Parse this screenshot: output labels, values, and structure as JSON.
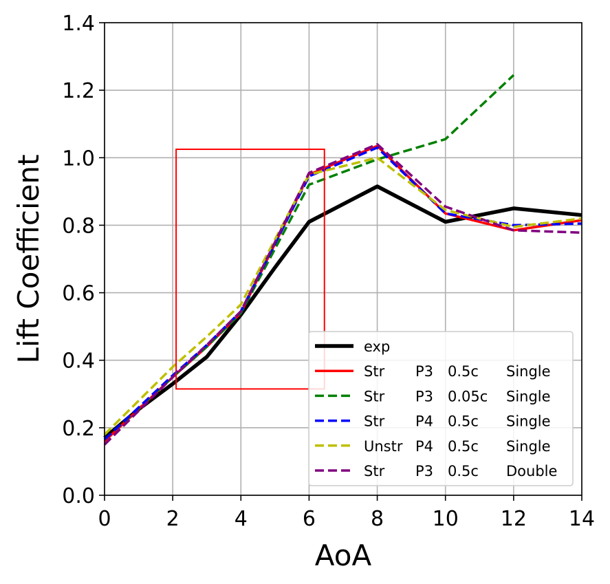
{
  "chart_data": {
    "type": "line",
    "xlabel": "AoA",
    "ylabel": "Lift Coefficient",
    "xlim": [
      0,
      14
    ],
    "ylim": [
      0,
      1.4
    ],
    "xticks": [
      "0",
      "2",
      "4",
      "6",
      "8",
      "10",
      "12",
      "14"
    ],
    "yticks": [
      "0.0",
      "0.2",
      "0.4",
      "0.6",
      "0.8",
      "1.0",
      "1.2",
      "1.4"
    ],
    "grid": true,
    "legend_position": "lower-right",
    "series": [
      {
        "name": "exp",
        "legend_cols": [
          "exp"
        ],
        "color": "#000000",
        "style": "solid",
        "points": [
          [
            0,
            0.17
          ],
          [
            1,
            0.255
          ],
          [
            2,
            0.33
          ],
          [
            3,
            0.41
          ],
          [
            4,
            0.535
          ],
          [
            5,
            0.675
          ],
          [
            6,
            0.81
          ],
          [
            8,
            0.915
          ],
          [
            10,
            0.81
          ],
          [
            11,
            0.83
          ],
          [
            12,
            0.85
          ],
          [
            14,
            0.83
          ]
        ]
      },
      {
        "name": "Str      P3  0.5c    Single",
        "legend_cols": [
          "Str",
          "P3",
          "0.5c",
          "Single"
        ],
        "color": "#ff0000",
        "style": "solid",
        "points": [
          [
            0,
            0.16
          ],
          [
            2,
            0.35
          ],
          [
            3,
            0.44
          ],
          [
            4,
            0.54
          ],
          [
            6,
            0.95
          ],
          [
            8,
            1.035
          ],
          [
            10,
            0.835
          ],
          [
            12,
            0.785
          ],
          [
            14,
            0.815
          ]
        ]
      },
      {
        "name": "Str      P3  0.05c  Single",
        "legend_cols": [
          "Str",
          "P3",
          "0.05c",
          "Single"
        ],
        "color": "#008000",
        "style": "dashed",
        "points": [
          [
            0,
            0.165
          ],
          [
            2,
            0.35
          ],
          [
            3,
            0.44
          ],
          [
            4,
            0.54
          ],
          [
            6,
            0.92
          ],
          [
            8,
            0.995
          ],
          [
            10,
            1.055
          ],
          [
            12,
            1.245
          ]
        ]
      },
      {
        "name": "Str      P4  0.5c    Single",
        "legend_cols": [
          "Str",
          "P4",
          "0.5c",
          "Single"
        ],
        "color": "#0000ff",
        "style": "dashed",
        "points": [
          [
            0,
            0.165
          ],
          [
            2,
            0.355
          ],
          [
            3,
            0.445
          ],
          [
            4,
            0.545
          ],
          [
            6,
            0.945
          ],
          [
            8,
            1.03
          ],
          [
            10,
            0.835
          ],
          [
            12,
            0.8
          ],
          [
            14,
            0.805
          ]
        ]
      },
      {
        "name": "Unstr P4  0.5c    Single",
        "legend_cols": [
          "Unstr",
          "P4",
          "0.5c",
          "Single"
        ],
        "color": "#bfbf00",
        "style": "dashed",
        "points": [
          [
            0,
            0.18
          ],
          [
            2,
            0.38
          ],
          [
            3,
            0.47
          ],
          [
            4,
            0.565
          ],
          [
            6,
            0.95
          ],
          [
            8,
            1.0
          ],
          [
            10,
            0.845
          ],
          [
            12,
            0.795
          ],
          [
            14,
            0.82
          ]
        ]
      },
      {
        "name": "Str      P3  0.5c    Double",
        "legend_cols": [
          "Str",
          "P3",
          "0.5c",
          "Double"
        ],
        "color": "#800080",
        "style": "dashed",
        "points": [
          [
            0,
            0.15
          ],
          [
            2,
            0.35
          ],
          [
            3,
            0.445
          ],
          [
            4,
            0.545
          ],
          [
            6,
            0.955
          ],
          [
            8,
            1.04
          ],
          [
            10,
            0.855
          ],
          [
            12,
            0.785
          ],
          [
            14,
            0.778
          ]
        ]
      }
    ],
    "annotation_box": {
      "color": "#ff0000",
      "x_range": [
        2.1,
        6.45
      ],
      "y_range": [
        0.315,
        1.025
      ]
    }
  }
}
